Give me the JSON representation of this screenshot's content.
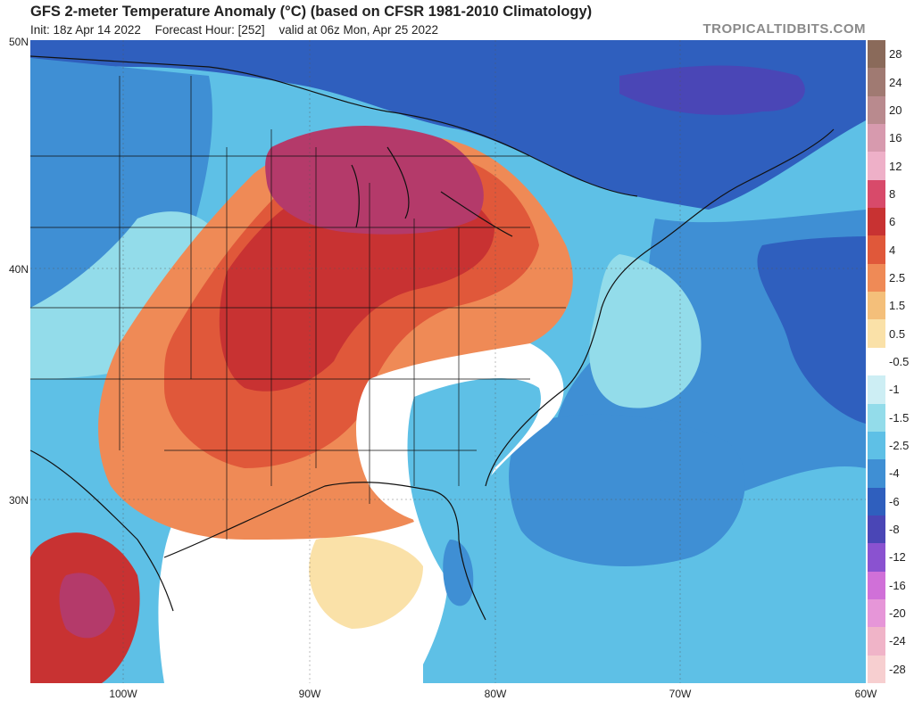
{
  "header": {
    "title": "GFS 2-meter Temperature Anomaly (°C) (based on CFSR 1981-2010 Climatology)",
    "init": "Init: 18z Apr 14 2022",
    "forecast_hour": "Forecast Hour: [252]",
    "valid": "valid at 06z Mon, Apr 25 2022",
    "credit": "TROPICALTIDBITS.COM"
  },
  "axes": {
    "lat_labels": [
      "50N",
      "40N",
      "30N"
    ],
    "lon_labels": [
      "100W",
      "90W",
      "80W",
      "70W",
      "60W"
    ]
  },
  "colorbar": {
    "levels": [
      {
        "label": "28",
        "color": "#8a6a5a"
      },
      {
        "label": "24",
        "color": "#a07a72"
      },
      {
        "label": "20",
        "color": "#b98a8e"
      },
      {
        "label": "16",
        "color": "#d79aae"
      },
      {
        "label": "12",
        "color": "#eeb0c8"
      },
      {
        "label": "8",
        "color": "#d84a6a"
      },
      {
        "label": "6",
        "color": "#c83232"
      },
      {
        "label": "4",
        "color": "#e0583a"
      },
      {
        "label": "2.5",
        "color": "#ef8a56"
      },
      {
        "label": "1.5",
        "color": "#f4bf7a"
      },
      {
        "label": "0.5",
        "color": "#fae1a8"
      },
      {
        "label": "-0.5",
        "color": "#ffffff"
      },
      {
        "label": "-1",
        "color": "#cdeef4"
      },
      {
        "label": "-1.5",
        "color": "#93dcea"
      },
      {
        "label": "-2.5",
        "color": "#5ec0e6"
      },
      {
        "label": "-4",
        "color": "#3f8fd4"
      },
      {
        "label": "-6",
        "color": "#2f5fbe"
      },
      {
        "label": "-8",
        "color": "#4a46b6"
      },
      {
        "label": "-12",
        "color": "#8a52d0"
      },
      {
        "label": "-16",
        "color": "#d070d8"
      },
      {
        "label": "-20",
        "color": "#e696d8"
      },
      {
        "label": "-24",
        "color": "#f0b4c8"
      },
      {
        "label": "-28",
        "color": "#f7cfd0"
      }
    ]
  },
  "colors": {
    "very_warm": "#b43a6a",
    "warm_dark": "#c83232",
    "warm": "#e0583a",
    "warm_light": "#ef8a56",
    "tan": "#f4bf7a",
    "pale": "#fae1a8",
    "neutral": "#ffffff",
    "cool_light": "#93dcea",
    "cool": "#5ec0e6",
    "cold": "#3f8fd4",
    "colder": "#2f5fbe",
    "coldest": "#4a46b6"
  }
}
